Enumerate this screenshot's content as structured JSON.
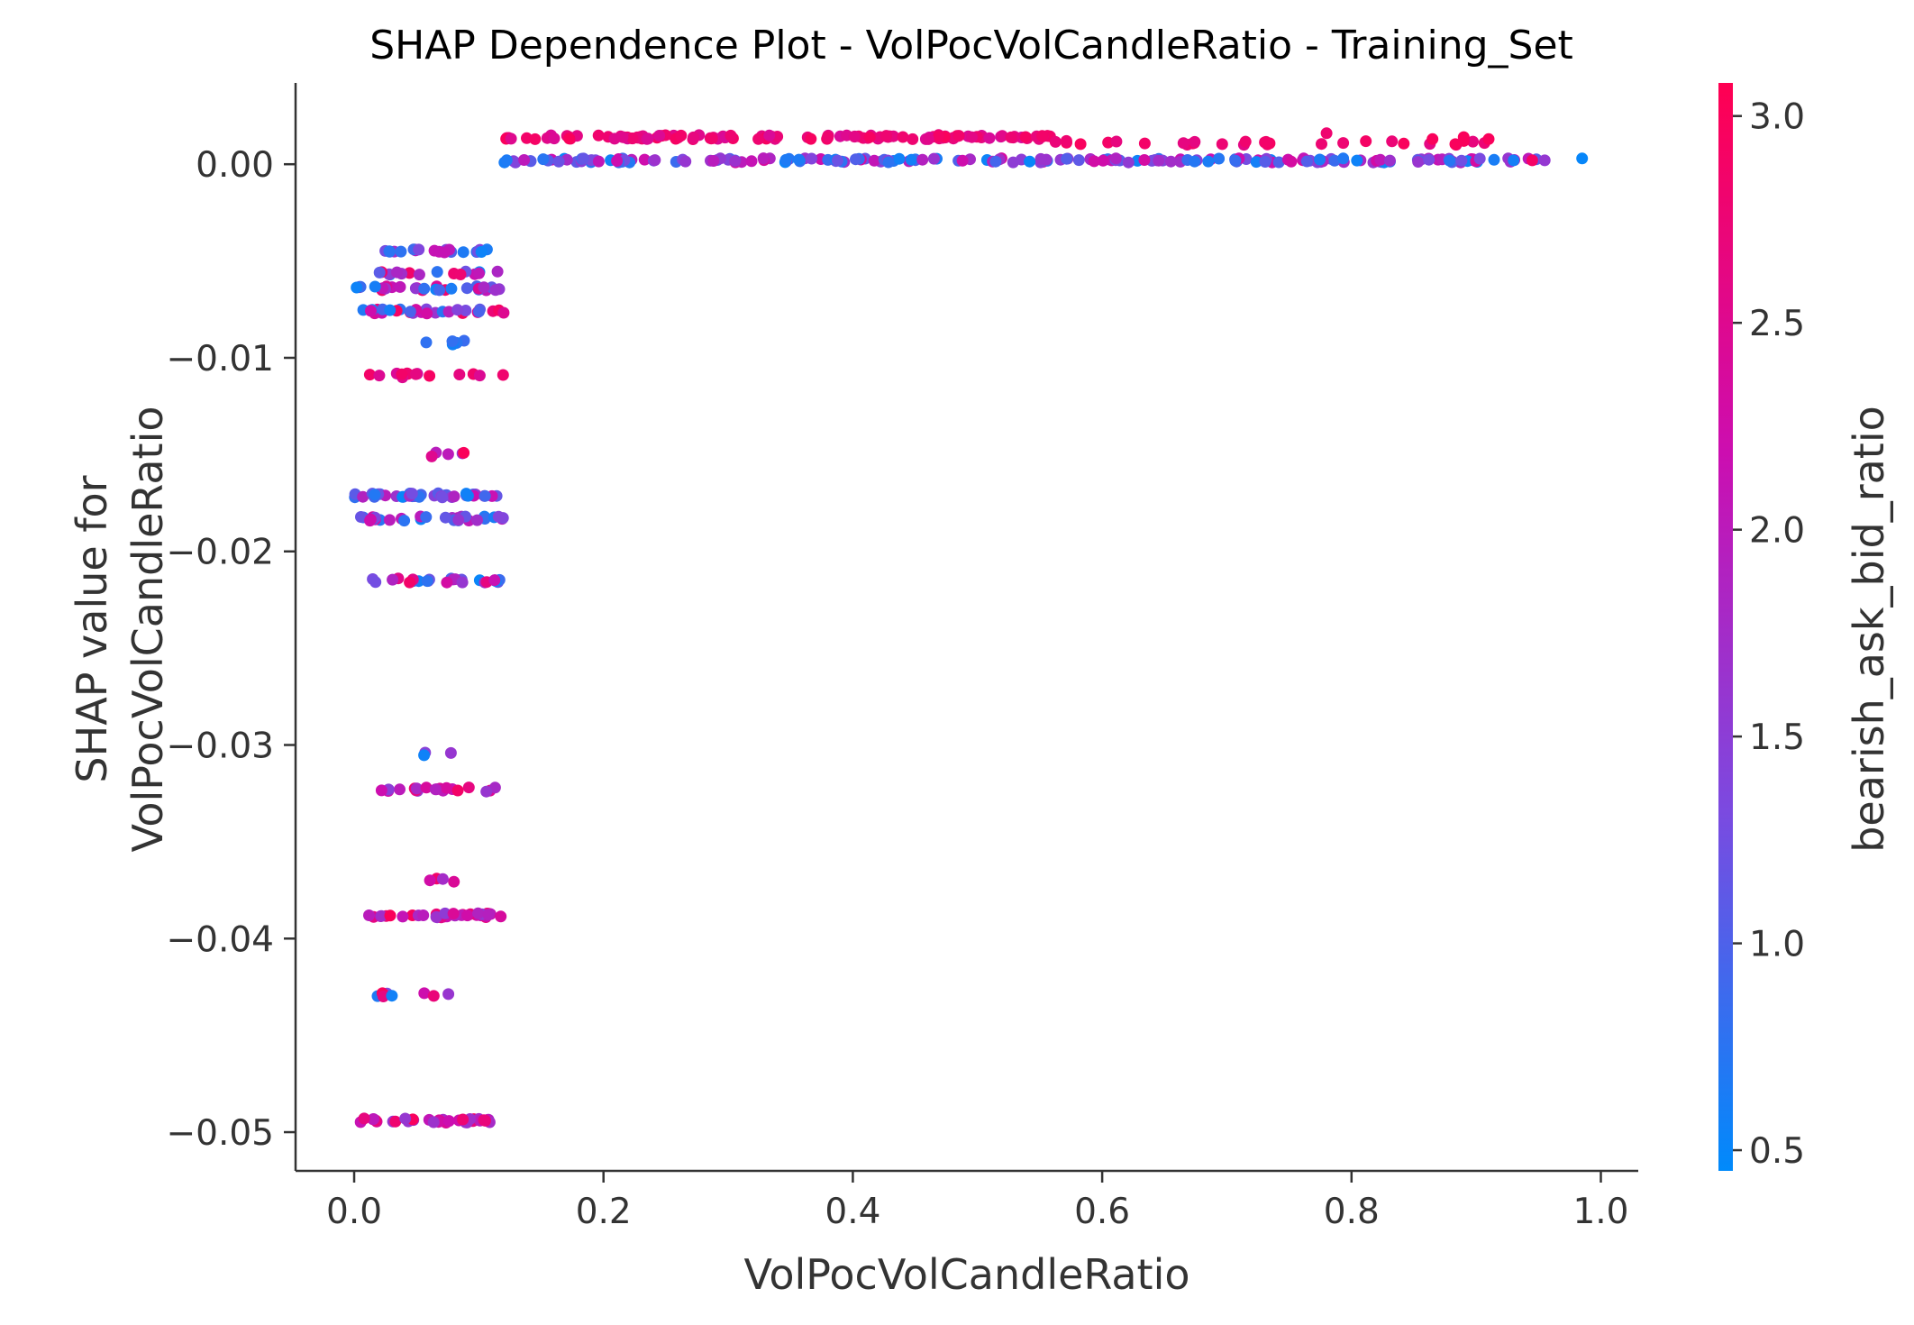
{
  "chart_data": {
    "type": "scatter",
    "title": "SHAP Dependence Plot - VolPocVolCandleRatio - Training_Set",
    "xlabel": "VolPocVolCandleRatio",
    "ylabel_lines": [
      "SHAP value for",
      "VolPocVolCandleRatio"
    ],
    "colorbar_label": "bearish_ask_bid_ratio",
    "xlim": [
      -0.047,
      1.03
    ],
    "ylim": [
      -0.052,
      0.0042
    ],
    "x_ticks": [
      0.0,
      0.2,
      0.4,
      0.6,
      0.8,
      1.0
    ],
    "x_tick_labels": [
      "0.0",
      "0.2",
      "0.4",
      "0.6",
      "0.8",
      "1.0"
    ],
    "y_ticks": [
      0.0,
      -0.01,
      -0.02,
      -0.03,
      -0.04,
      -0.05
    ],
    "y_tick_labels": [
      "0.00",
      "−0.01",
      "−0.02",
      "−0.03",
      "−0.04",
      "−0.05"
    ],
    "colorbar_range": [
      0.45,
      3.08
    ],
    "colorbar_ticks": [
      0.5,
      1.0,
      1.5,
      2.0,
      2.5,
      3.0
    ],
    "colorbar_tick_labels": [
      "0.5",
      "1.0",
      "1.5",
      "2.0",
      "2.5",
      "3.0"
    ],
    "colormap": [
      "#008afb",
      "#7b4ae0",
      "#cc0eb0",
      "#ff0052"
    ],
    "grid": false,
    "series": [
      {
        "bands": [
          {
            "y": 0.0014,
            "x_range": [
              0.12,
              0.56
            ],
            "count": 130,
            "color_range": [
              2.4,
              3.0
            ]
          },
          {
            "y": 0.0011,
            "x_range": [
              0.56,
              0.92
            ],
            "count": 30,
            "color_range": [
              2.6,
              3.0
            ]
          },
          {
            "y": 0.0002,
            "x_range": [
              0.12,
              0.95
            ],
            "count": 200,
            "color_range": [
              0.5,
              2.4
            ]
          },
          {
            "y": -0.0045,
            "x_range": [
              0.02,
              0.12
            ],
            "count": 22,
            "color_range": [
              0.5,
              2.2
            ]
          },
          {
            "y": -0.0056,
            "x_range": [
              0.02,
              0.12
            ],
            "count": 16,
            "color_range": [
              0.5,
              3.0
            ]
          },
          {
            "y": -0.0064,
            "x_range": [
              0.0,
              0.12
            ],
            "count": 30,
            "color_range": [
              0.5,
              3.0
            ]
          },
          {
            "y": -0.0076,
            "x_range": [
              0.0,
              0.12
            ],
            "count": 30,
            "color_range": [
              0.5,
              3.0
            ]
          },
          {
            "y": -0.0092,
            "x_range": [
              0.03,
              0.1
            ],
            "count": 6,
            "color_range": [
              0.5,
              1.0
            ]
          },
          {
            "y": -0.0109,
            "x_range": [
              0.01,
              0.12
            ],
            "count": 14,
            "color_range": [
              2.3,
              3.0
            ]
          },
          {
            "y": -0.015,
            "x_range": [
              0.03,
              0.1
            ],
            "count": 5,
            "color_range": [
              1.5,
              3.0
            ]
          },
          {
            "y": -0.0171,
            "x_range": [
              0.0,
              0.12
            ],
            "count": 40,
            "color_range": [
              0.5,
              2.2
            ]
          },
          {
            "y": -0.0183,
            "x_range": [
              0.0,
              0.12
            ],
            "count": 32,
            "color_range": [
              0.5,
              2.4
            ]
          },
          {
            "y": -0.0215,
            "x_range": [
              0.0,
              0.12
            ],
            "count": 26,
            "color_range": [
              0.5,
              3.0
            ]
          },
          {
            "y": -0.0305,
            "x_range": [
              0.055,
              0.095
            ],
            "count": 3,
            "color_range": [
              0.5,
              1.8
            ]
          },
          {
            "y": -0.0323,
            "x_range": [
              0.02,
              0.12
            ],
            "count": 20,
            "color_range": [
              1.5,
              3.0
            ]
          },
          {
            "y": -0.037,
            "x_range": [
              0.035,
              0.09
            ],
            "count": 4,
            "color_range": [
              1.3,
              3.0
            ]
          },
          {
            "y": -0.0388,
            "x_range": [
              0.01,
              0.12
            ],
            "count": 34,
            "color_range": [
              1.5,
              3.0
            ]
          },
          {
            "y": -0.0429,
            "x_range": [
              0.015,
              0.105
            ],
            "count": 8,
            "color_range": [
              0.5,
              3.0
            ]
          },
          {
            "y": -0.0494,
            "x_range": [
              0.005,
              0.12
            ],
            "count": 36,
            "color_range": [
              1.5,
              3.0
            ]
          }
        ],
        "points": [
          {
            "x": 0.985,
            "y": 0.0003,
            "c": 0.5
          },
          {
            "x": 0.955,
            "y": 0.0002,
            "c": 1.6
          },
          {
            "x": 0.945,
            "y": 0.0002,
            "c": 2.9
          },
          {
            "x": 0.93,
            "y": 0.0002,
            "c": 0.6
          },
          {
            "x": 0.91,
            "y": 0.0013,
            "c": 3.0
          },
          {
            "x": 0.89,
            "y": 0.0014,
            "c": 3.0
          },
          {
            "x": 0.865,
            "y": 0.0013,
            "c": 3.0
          },
          {
            "x": 0.78,
            "y": 0.0016,
            "c": 2.8
          }
        ]
      }
    ]
  }
}
